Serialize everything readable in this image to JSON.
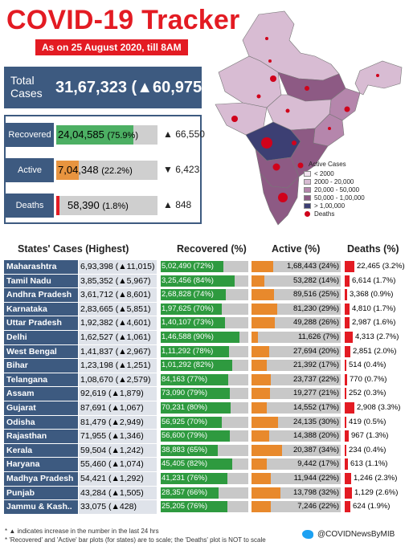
{
  "header": {
    "title": "COVID-19 Tracker",
    "subtitle": "As on 25 August 2020, till 8AM"
  },
  "total": {
    "label": "Total Cases",
    "value": "31,67,323",
    "change": "(▲60,975)"
  },
  "summary": [
    {
      "label": "Recovered",
      "value": "24,04,585",
      "pct": "(75.9%)",
      "change": "▲ 66,550",
      "fill": 0.759,
      "color": "#4caf63"
    },
    {
      "label": "Active",
      "value": "7,04,348",
      "pct": "(22.2%)",
      "change": "▼ 6,423",
      "fill": 0.222,
      "color": "#e8943f"
    },
    {
      "label": "Deaths",
      "value": "58,390",
      "pct": "(1.8%)",
      "change": "▲ 848",
      "fill": 0.018,
      "color": "#e31b23"
    }
  ],
  "legend": {
    "title": "Active Cases",
    "items": [
      {
        "label": "< 2000",
        "color": "#f1e3ef"
      },
      {
        "label": "2000 - 20,000",
        "color": "#d8bcd3"
      },
      {
        "label": "20,000 - 50,000",
        "color": "#b586ac"
      },
      {
        "label": "50,000 - 1,00,000",
        "color": "#8d5a84"
      },
      {
        "label": "> 1,00,000",
        "color": "#3c3f73"
      }
    ],
    "deaths_label": "Deaths"
  },
  "table": {
    "headers": {
      "states": "States' Cases (Highest)",
      "recovered": "Recovered (%)",
      "active": "Active (%)",
      "deaths": "Deaths (%)"
    },
    "rows": [
      {
        "state": "Maharashtra",
        "cases": "6,93,398 (▲11,015)",
        "recovered": "5,02,490 (72%)",
        "rec_pct": 72,
        "active": "1,68,443 (24%)",
        "act_pct": 24,
        "deaths": "22,465 (3.2%)",
        "death_pct": 3.2
      },
      {
        "state": "Tamil Nadu",
        "cases": "3,85,352 (▲5,967)",
        "recovered": "3,25,456 (84%)",
        "rec_pct": 84,
        "active": "53,282 (14%)",
        "act_pct": 14,
        "deaths": "6,614 (1.7%)",
        "death_pct": 1.7
      },
      {
        "state": "Andhra Pradesh",
        "cases": "3,61,712 (▲8,601)",
        "recovered": "2,68,828 (74%)",
        "rec_pct": 74,
        "active": "89,516 (25%)",
        "act_pct": 25,
        "deaths": "3,368 (0.9%)",
        "death_pct": 0.9
      },
      {
        "state": "Karnataka",
        "cases": "2,83,665 (▲5,851)",
        "recovered": "1,97,625 (70%)",
        "rec_pct": 70,
        "active": "81,230 (29%)",
        "act_pct": 29,
        "deaths": "4,810 (1.7%)",
        "death_pct": 1.7
      },
      {
        "state": "Uttar Pradesh",
        "cases": "1,92,382 (▲4,601)",
        "recovered": "1,40,107 (73%)",
        "rec_pct": 73,
        "active": "49,288 (26%)",
        "act_pct": 26,
        "deaths": "2,987 (1.6%)",
        "death_pct": 1.6
      },
      {
        "state": "Delhi",
        "cases": "1,62,527 (▲1,061)",
        "recovered": "1,46,588 (90%)",
        "rec_pct": 90,
        "active": "11,626 (7%)",
        "act_pct": 7,
        "deaths": "4,313 (2.7%)",
        "death_pct": 2.7
      },
      {
        "state": "West Bengal",
        "cases": "1,41,837 (▲2,967)",
        "recovered": "1,11,292 (78%)",
        "rec_pct": 78,
        "active": "27,694 (20%)",
        "act_pct": 20,
        "deaths": "2,851 (2.0%)",
        "death_pct": 2.0
      },
      {
        "state": "Bihar",
        "cases": "1,23,198 (▲1,251)",
        "recovered": "1,01,292 (82%)",
        "rec_pct": 82,
        "active": "21,392 (17%)",
        "act_pct": 17,
        "deaths": "514 (0.4%)",
        "death_pct": 0.4
      },
      {
        "state": "Telangana",
        "cases": "1,08,670 (▲2,579)",
        "recovered": "84,163 (77%)",
        "rec_pct": 77,
        "active": "23,737 (22%)",
        "act_pct": 22,
        "deaths": "770 (0.7%)",
        "death_pct": 0.7
      },
      {
        "state": "Assam",
        "cases": "92,619 (▲1,879)",
        "recovered": "73,090 (79%)",
        "rec_pct": 79,
        "active": "19,277 (21%)",
        "act_pct": 21,
        "deaths": "252 (0.3%)",
        "death_pct": 0.3
      },
      {
        "state": "Gujarat",
        "cases": "87,691 (▲1,067)",
        "recovered": "70,231 (80%)",
        "rec_pct": 80,
        "active": "14,552 (17%)",
        "act_pct": 17,
        "deaths": "2,908 (3.3%)",
        "death_pct": 3.3
      },
      {
        "state": "Odisha",
        "cases": "81,479 (▲2,949)",
        "recovered": "56,925 (70%)",
        "rec_pct": 70,
        "active": "24,135 (30%)",
        "act_pct": 30,
        "deaths": "419 (0.5%)",
        "death_pct": 0.5
      },
      {
        "state": "Rajasthan",
        "cases": "71,955 (▲1,346)",
        "recovered": "56,600 (79%)",
        "rec_pct": 79,
        "active": "14,388 (20%)",
        "act_pct": 20,
        "deaths": "967 (1.3%)",
        "death_pct": 1.3
      },
      {
        "state": "Kerala",
        "cases": "59,504 (▲1,242)",
        "recovered": "38,883 (65%)",
        "rec_pct": 65,
        "active": "20,387 (34%)",
        "act_pct": 34,
        "deaths": "234 (0.4%)",
        "death_pct": 0.4
      },
      {
        "state": "Haryana",
        "cases": "55,460 (▲1,074)",
        "recovered": "45,405 (82%)",
        "rec_pct": 82,
        "active": "9,442 (17%)",
        "act_pct": 17,
        "deaths": "613 (1.1%)",
        "death_pct": 1.1
      },
      {
        "state": "Madhya Pradesh",
        "cases": "54,421 (▲1,292)",
        "recovered": "41,231 (76%)",
        "rec_pct": 76,
        "active": "11,944 (22%)",
        "act_pct": 22,
        "deaths": "1,246 (2.3%)",
        "death_pct": 2.3
      },
      {
        "state": "Punjab",
        "cases": "43,284 (▲1,505)",
        "recovered": "28,357 (66%)",
        "rec_pct": 66,
        "active": "13,798 (32%)",
        "act_pct": 32,
        "deaths": "1,129 (2.6%)",
        "death_pct": 2.6
      },
      {
        "state": "Jammu & Kash..",
        "cases": "33,075 (▲428)",
        "recovered": "25,205 (76%)",
        "rec_pct": 76,
        "active": "7,246 (22%)",
        "act_pct": 22,
        "deaths": "624 (1.9%)",
        "death_pct": 1.9
      }
    ]
  },
  "footer": {
    "note1": "* ▲ indicates increase in the number in the last 24 hrs",
    "note2": "* 'Recovered' and 'Active' bar plots (for states) are to scale; the 'Deaths' plot is NOT to scale",
    "twitter_handle": "@COVIDNewsByMIB",
    "twitter_icon": "twitter-icon"
  }
}
